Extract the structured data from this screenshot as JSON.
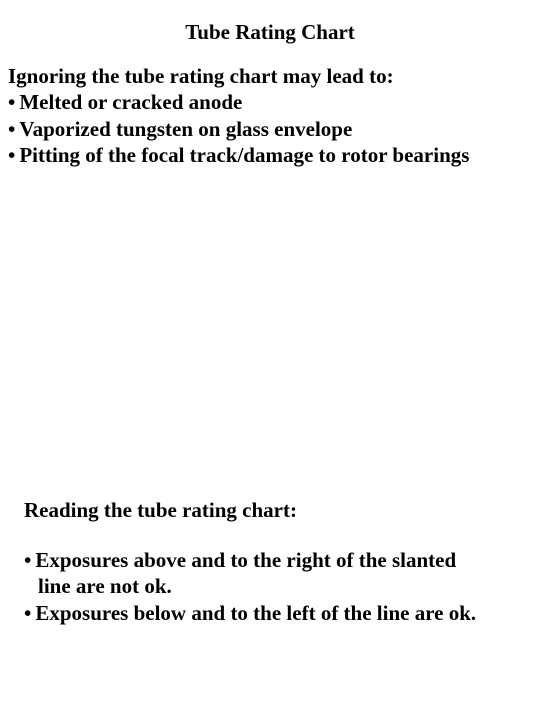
{
  "title": "Tube Rating Chart",
  "section1": {
    "intro": "Ignoring the tube rating chart may lead to:",
    "bullets": [
      "Melted or cracked anode",
      "Vaporized tungsten on glass envelope",
      "Pitting of the focal track/damage to rotor bearings"
    ]
  },
  "section2": {
    "intro": "Reading the tube rating chart:",
    "bullets": [
      {
        "line1": "Exposures above and to the right of the slanted",
        "line2": "line are not ok."
      },
      {
        "line1": "Exposures below and to the left of the line are ok.",
        "line2": ""
      }
    ]
  },
  "styling": {
    "background_color": "#ffffff",
    "text_color": "#000000",
    "font_family": "Times New Roman",
    "title_fontsize": 21,
    "body_fontsize": 21,
    "font_weight": "bold"
  }
}
